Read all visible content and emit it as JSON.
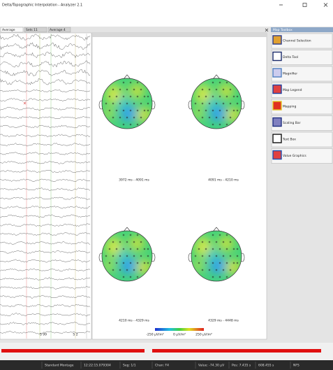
{
  "window": {
    "title": "Delta/Topographic Interpolation - Analyzer 2.1"
  },
  "tabs": [
    "Average",
    "Sets 11",
    "Average 4"
  ],
  "map_view": {
    "maps": [
      "3972 ms - 4091 ms",
      "4091 ms - 4210 ms",
      "4210 ms - 4329 ms",
      "4329 ms - 4448 ms"
    ],
    "legend": {
      "min": "-250 µV/m²",
      "mid": "0 µV/m²",
      "max": "250 µV/m²"
    }
  },
  "markers": [
    "S 99",
    "S 2"
  ],
  "toolbox": {
    "title": "Map Toolbox",
    "items": [
      "Channel Selection",
      "Delta Tool",
      "Magnifier",
      "Map Legend",
      "Mapping",
      "Scaling Bar",
      "Text Box",
      "Value Graphics"
    ]
  },
  "status_bar": [
    "Standard Montage",
    "12:22:15.079304",
    "Seg: 1/1",
    "Chan: F4",
    "Value: -74.30 µV",
    "Pos: 7.435 s",
    "608.455 s",
    "NFS"
  ]
}
